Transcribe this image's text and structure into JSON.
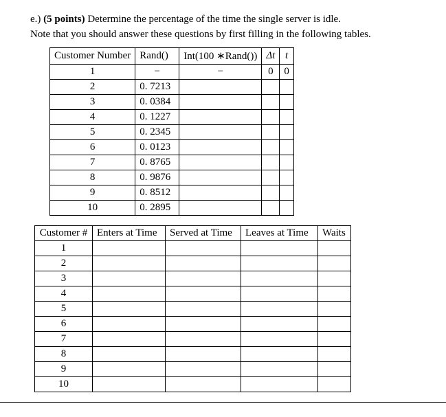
{
  "question": {
    "label": "e.)",
    "points": "(5 points)",
    "text": "Determine the percentage of the time the single server is idle.",
    "note": "Note that you should answer these questions by first filling in the following tables."
  },
  "table1": {
    "headers": {
      "customer_number": "Customer Number",
      "rand": "Rand()",
      "int": "Int(100 ∗Rand())",
      "dt": "Δt",
      "t": "t"
    },
    "rows": [
      {
        "n": "1",
        "rand": "−",
        "int": "−",
        "dt": "0",
        "t": "0"
      },
      {
        "n": "2",
        "rand": "0. 7213",
        "int": "",
        "dt": "",
        "t": ""
      },
      {
        "n": "3",
        "rand": "0. 0384",
        "int": "",
        "dt": "",
        "t": ""
      },
      {
        "n": "4",
        "rand": "0. 1227",
        "int": "",
        "dt": "",
        "t": ""
      },
      {
        "n": "5",
        "rand": "0. 2345",
        "int": "",
        "dt": "",
        "t": ""
      },
      {
        "n": "6",
        "rand": "0. 0123",
        "int": "",
        "dt": "",
        "t": ""
      },
      {
        "n": "7",
        "rand": "0. 8765",
        "int": "",
        "dt": "",
        "t": ""
      },
      {
        "n": "8",
        "rand": "0. 9876",
        "int": "",
        "dt": "",
        "t": ""
      },
      {
        "n": "9",
        "rand": "0. 8512",
        "int": "",
        "dt": "",
        "t": ""
      },
      {
        "n": "10",
        "rand": "0. 2895",
        "int": "",
        "dt": "",
        "t": ""
      }
    ]
  },
  "table2": {
    "headers": {
      "customer_number": "Customer #",
      "enters": "Enters at Time",
      "served": "Served at Time",
      "leaves": "Leaves at Time",
      "waits": "Waits"
    },
    "rows": [
      {
        "n": "1",
        "enters": "",
        "served": "",
        "leaves": "",
        "waits": ""
      },
      {
        "n": "2",
        "enters": "",
        "served": "",
        "leaves": "",
        "waits": ""
      },
      {
        "n": "3",
        "enters": "",
        "served": "",
        "leaves": "",
        "waits": ""
      },
      {
        "n": "4",
        "enters": "",
        "served": "",
        "leaves": "",
        "waits": ""
      },
      {
        "n": "5",
        "enters": "",
        "served": "",
        "leaves": "",
        "waits": ""
      },
      {
        "n": "6",
        "enters": "",
        "served": "",
        "leaves": "",
        "waits": ""
      },
      {
        "n": "7",
        "enters": "",
        "served": "",
        "leaves": "",
        "waits": ""
      },
      {
        "n": "8",
        "enters": "",
        "served": "",
        "leaves": "",
        "waits": ""
      },
      {
        "n": "9",
        "enters": "",
        "served": "",
        "leaves": "",
        "waits": ""
      },
      {
        "n": "10",
        "enters": "",
        "served": "",
        "leaves": "",
        "waits": ""
      }
    ]
  }
}
